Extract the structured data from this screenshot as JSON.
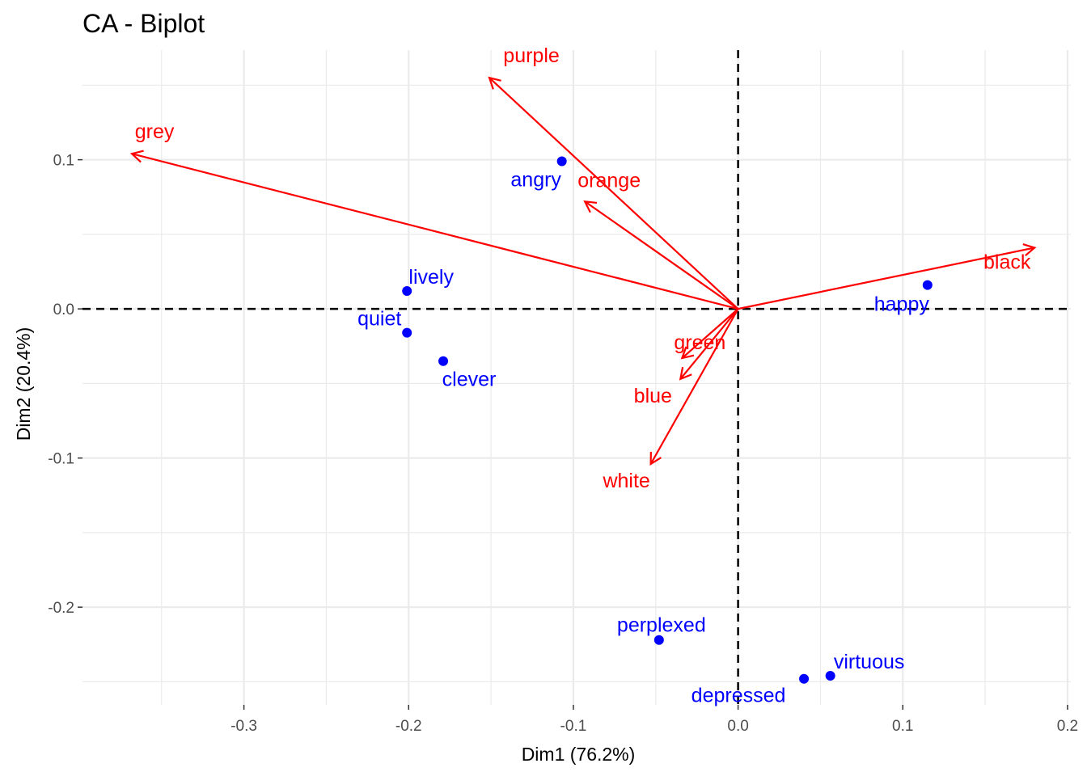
{
  "chart_data": {
    "type": "scatter",
    "title": "CA - Biplot",
    "xlabel": "Dim1 (76.2%)",
    "ylabel": "Dim2 (20.4%)",
    "xlim": [
      -0.398,
      0.202
    ],
    "ylim": [
      -0.2655,
      0.1735
    ],
    "x_ticks": [
      -0.3,
      -0.2,
      -0.1,
      0.0,
      0.1,
      0.2
    ],
    "x_tick_labels": [
      "-0.3",
      "-0.2",
      "-0.1",
      "0.0",
      "0.1",
      "0.2"
    ],
    "y_ticks": [
      -0.2,
      -0.1,
      0.0,
      0.1
    ],
    "y_tick_labels": [
      "-0.2",
      "-0.1",
      "0.0",
      "0.1"
    ],
    "grid": true,
    "reference_lines": {
      "x": 0,
      "y": 0
    },
    "colors": {
      "rows": "#0000ff",
      "columns": "#ff0000"
    },
    "rows": [
      {
        "label": "angry",
        "x": -0.107,
        "y": 0.099
      },
      {
        "label": "lively",
        "x": -0.201,
        "y": 0.012
      },
      {
        "label": "quiet",
        "x": -0.201,
        "y": -0.016
      },
      {
        "label": "clever",
        "x": -0.179,
        "y": -0.035
      },
      {
        "label": "happy",
        "x": 0.115,
        "y": 0.016
      },
      {
        "label": "perplexed",
        "x": -0.048,
        "y": -0.222
      },
      {
        "label": "depressed",
        "x": 0.04,
        "y": -0.248
      },
      {
        "label": "virtuous",
        "x": 0.056,
        "y": -0.246
      }
    ],
    "columns": [
      {
        "label": "purple",
        "x": -0.151,
        "y": 0.155
      },
      {
        "label": "grey",
        "x": -0.368,
        "y": 0.104
      },
      {
        "label": "orange",
        "x": -0.093,
        "y": 0.072
      },
      {
        "label": "black",
        "x": 0.18,
        "y": 0.041
      },
      {
        "label": "green",
        "x": -0.034,
        "y": -0.033
      },
      {
        "label": "blue",
        "x": -0.035,
        "y": -0.047
      },
      {
        "label": "white",
        "x": -0.053,
        "y": -0.104
      }
    ]
  }
}
